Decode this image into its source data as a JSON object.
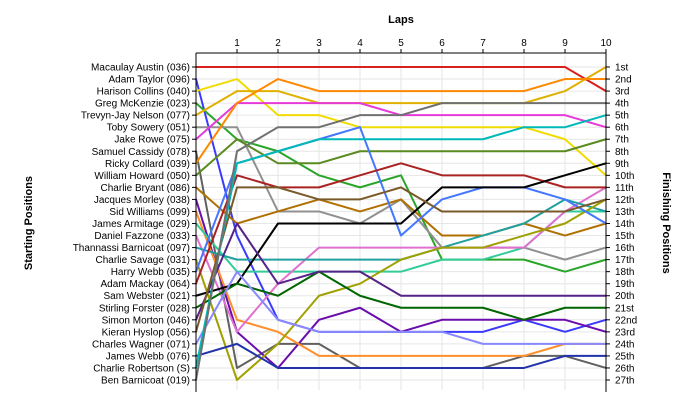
{
  "chart_data": {
    "type": "line",
    "title": "",
    "xlabel": "Laps",
    "ylabel_left": "Starting Positions",
    "ylabel_right": "Finishing Positions",
    "laps": [
      1,
      2,
      3,
      4,
      5,
      6,
      7,
      8,
      9,
      10
    ],
    "grid": true,
    "y_reversed": true,
    "num_positions": 27,
    "finishing_labels": [
      "1st",
      "2nd",
      "3rd",
      "4th",
      "5th",
      "6th",
      "7th",
      "8th",
      "9th",
      "10th",
      "11th",
      "12th",
      "13th",
      "14th",
      "15th",
      "16th",
      "17th",
      "18th",
      "19th",
      "20th",
      "21st",
      "22nd",
      "23rd",
      "24th",
      "25th",
      "26th",
      "27th"
    ],
    "series": [
      {
        "name": "Macaulay Austin (036)",
        "color": "#d8201d",
        "positions": [
          1,
          1,
          1,
          1,
          1,
          1,
          1,
          1,
          1,
          1,
          3
        ]
      },
      {
        "name": "Adam Taylor (096)",
        "color": "#3a3aff",
        "positions": [
          2,
          15,
          22,
          23,
          23,
          23,
          23,
          23,
          22,
          23,
          22
        ]
      },
      {
        "name": "Harison Collins (040)",
        "color": "#f0dc00",
        "positions": [
          3,
          2,
          5,
          5,
          6,
          6,
          6,
          6,
          6,
          7,
          10
        ]
      },
      {
        "name": "Greg McKenzie (023)",
        "color": "#2aa52a",
        "positions": [
          4,
          7,
          8,
          10,
          11,
          10,
          17,
          17,
          17,
          18,
          17
        ]
      },
      {
        "name": "Trevyn-Jay Nelson (077)",
        "color": "#e0b000",
        "positions": [
          5,
          3,
          3,
          4,
          4,
          4,
          4,
          4,
          4,
          3,
          1
        ]
      },
      {
        "name": "Toby Sowery (051)",
        "color": "#909090",
        "positions": [
          6,
          6,
          13,
          13,
          14,
          12,
          16,
          16,
          16,
          17,
          16
        ]
      },
      {
        "name": "Jake Rowe (075)",
        "color": "#e53ad8",
        "positions": [
          7,
          4,
          4,
          4,
          4,
          5,
          5,
          5,
          5,
          5,
          6
        ]
      },
      {
        "name": "Samuel Cassidy (078)",
        "color": "#606060",
        "positions": [
          8,
          26,
          24,
          24,
          26,
          26,
          26,
          26,
          25,
          25,
          26
        ]
      },
      {
        "name": "Ricky Collard (039)",
        "color": "#ff8800",
        "positions": [
          9,
          4,
          2,
          3,
          3,
          3,
          3,
          3,
          3,
          2,
          2
        ]
      },
      {
        "name": "William Howard (050)",
        "color": "#5a8a20",
        "positions": [
          10,
          7,
          9,
          9,
          8,
          8,
          8,
          8,
          8,
          8,
          7
        ]
      },
      {
        "name": "Charlie Bryant (086)",
        "color": "#b07000",
        "positions": [
          11,
          14,
          13,
          12,
          13,
          12,
          15,
          15,
          14,
          15,
          14
        ]
      },
      {
        "name": "Jacques Morley (038)",
        "color": "#6a0dad",
        "positions": [
          12,
          23,
          26,
          22,
          21,
          23,
          22,
          22,
          22,
          22,
          23
        ]
      },
      {
        "name": "Sid Williams (099)",
        "color": "#ff8f2a",
        "positions": [
          13,
          22,
          23,
          25,
          25,
          25,
          25,
          25,
          25,
          24,
          24
        ]
      },
      {
        "name": "James Armitage (029)",
        "color": "#33cc99",
        "positions": [
          14,
          18,
          18,
          18,
          18,
          18,
          17,
          17,
          16,
          13,
          13
        ]
      },
      {
        "name": "Daniel Fazzone (033)",
        "color": "#e070d0",
        "positions": [
          15,
          23,
          19,
          16,
          16,
          16,
          16,
          16,
          16,
          13,
          11
        ]
      },
      {
        "name": "Thannassi Barnicoat (097)",
        "color": "#20a0a0",
        "positions": [
          16,
          17,
          17,
          17,
          17,
          17,
          16,
          15,
          14,
          12,
          13
        ]
      },
      {
        "name": "Charlie Savage (031)",
        "color": "#a0a000",
        "positions": [
          17,
          27,
          24,
          20,
          19,
          17,
          16,
          16,
          15,
          14,
          12
        ]
      },
      {
        "name": "Harry Webb (035)",
        "color": "#4477ff",
        "positions": [
          18,
          9,
          8,
          7,
          6,
          15,
          12,
          11,
          11,
          12,
          14
        ]
      },
      {
        "name": "Adam Mackay (064)",
        "color": "#aa2222",
        "positions": [
          19,
          10,
          11,
          11,
          10,
          9,
          10,
          10,
          10,
          11,
          11
        ]
      },
      {
        "name": "Sam Webster (021)",
        "color": "#000000",
        "positions": [
          20,
          19,
          14,
          14,
          14,
          14,
          11,
          11,
          11,
          10,
          9
        ]
      },
      {
        "name": "Stirling Forster (028)",
        "color": "#006600",
        "positions": [
          21,
          19,
          20,
          18,
          20,
          21,
          21,
          21,
          22,
          21,
          21
        ]
      },
      {
        "name": "Simon Morton (046)",
        "color": "#552288",
        "positions": [
          22,
          14,
          19,
          18,
          18,
          20,
          20,
          20,
          20,
          20,
          20
        ]
      },
      {
        "name": "Kieran Hyslop (056)",
        "color": "#7a5a2a",
        "positions": [
          23,
          11,
          11,
          12,
          12,
          11,
          13,
          13,
          13,
          13,
          12
        ]
      },
      {
        "name": "Charles Wagner (071)",
        "color": "#8888ff",
        "positions": [
          24,
          18,
          22,
          23,
          23,
          23,
          23,
          24,
          24,
          24,
          24
        ]
      },
      {
        "name": "James Webb (076)",
        "color": "#2233aa",
        "positions": [
          25,
          24,
          26,
          26,
          26,
          26,
          26,
          26,
          26,
          25,
          25
        ]
      },
      {
        "name": "Charlie Robertson (S)",
        "color": "#00b8b8",
        "positions": [
          26,
          9,
          8,
          7,
          7,
          7,
          7,
          7,
          6,
          6,
          5
        ]
      },
      {
        "name": "Ben Barnicoat (019)",
        "color": "#707070",
        "positions": [
          27,
          8,
          6,
          6,
          5,
          5,
          4,
          4,
          4,
          4,
          4
        ]
      }
    ]
  }
}
